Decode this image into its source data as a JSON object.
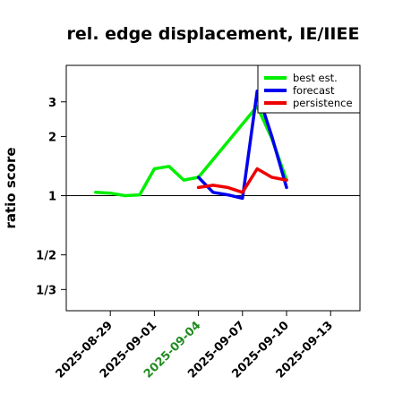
{
  "chart_data": {
    "type": "line",
    "title": "rel. edge displacement, IE/IIEE",
    "xlabel": "",
    "ylabel": "ratio score",
    "y_scale": "log",
    "ylim": [
      0.26,
      4.6
    ],
    "xlim": [
      "2025-08-26",
      "2025-09-15"
    ],
    "y_ticks": [
      {
        "value": 3,
        "label": "3"
      },
      {
        "value": 2,
        "label": "2"
      },
      {
        "value": 1,
        "label": "1"
      },
      {
        "value": 0.5,
        "label": "1/2"
      },
      {
        "value": 0.3333,
        "label": "1/3"
      }
    ],
    "x_ticks": [
      {
        "date": "2025-08-29",
        "label": "2025-08-29",
        "color": "#000000"
      },
      {
        "date": "2025-09-01",
        "label": "2025-09-01",
        "color": "#000000"
      },
      {
        "date": "2025-09-04",
        "label": "2025-09-04",
        "color": "#228b22"
      },
      {
        "date": "2025-09-07",
        "label": "2025-09-07",
        "color": "#000000"
      },
      {
        "date": "2025-09-10",
        "label": "2025-09-10",
        "color": "#000000"
      },
      {
        "date": "2025-09-13",
        "label": "2025-09-13",
        "color": "#000000"
      }
    ],
    "reference_line": 1,
    "legend_position": "top-right",
    "grid": false,
    "series": [
      {
        "name": "best est.",
        "color": "#00ee00",
        "points": [
          {
            "x": "2025-08-28",
            "y": 1.04
          },
          {
            "x": "2025-08-29",
            "y": 1.03
          },
          {
            "x": "2025-08-30",
            "y": 1.0
          },
          {
            "x": "2025-08-31",
            "y": 1.01
          },
          {
            "x": "2025-09-01",
            "y": 1.37
          },
          {
            "x": "2025-09-02",
            "y": 1.41
          },
          {
            "x": "2025-09-03",
            "y": 1.2
          },
          {
            "x": "2025-09-04",
            "y": 1.24
          },
          {
            "x": "2025-09-08",
            "y": 2.85
          },
          {
            "x": "2025-09-09",
            "y": 1.95
          },
          {
            "x": "2025-09-10",
            "y": 1.2
          }
        ]
      },
      {
        "name": "forecast",
        "color": "#0000ee",
        "points": [
          {
            "x": "2025-09-04",
            "y": 1.24
          },
          {
            "x": "2025-09-05",
            "y": 1.04
          },
          {
            "x": "2025-09-06",
            "y": 1.01
          },
          {
            "x": "2025-09-07",
            "y": 0.97
          },
          {
            "x": "2025-09-08",
            "y": 3.4
          },
          {
            "x": "2025-09-09",
            "y": 2.0
          },
          {
            "x": "2025-09-10",
            "y": 1.1
          }
        ]
      },
      {
        "name": "persistence",
        "color": "#ee0000",
        "points": [
          {
            "x": "2025-09-04",
            "y": 1.1
          },
          {
            "x": "2025-09-05",
            "y": 1.13
          },
          {
            "x": "2025-09-06",
            "y": 1.1
          },
          {
            "x": "2025-09-07",
            "y": 1.04
          },
          {
            "x": "2025-09-08",
            "y": 1.37
          },
          {
            "x": "2025-09-09",
            "y": 1.24
          },
          {
            "x": "2025-09-10",
            "y": 1.2
          }
        ]
      }
    ]
  }
}
